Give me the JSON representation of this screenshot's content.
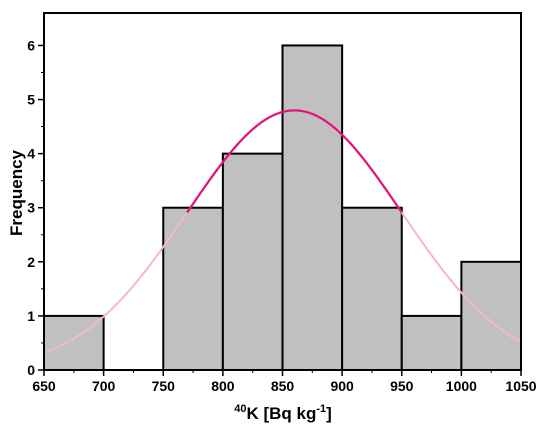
{
  "chart_data": {
    "type": "bar",
    "subtype": "histogram",
    "bins": [
      {
        "start": 650,
        "end": 700,
        "count": 1
      },
      {
        "start": 700,
        "end": 750,
        "count": 0
      },
      {
        "start": 750,
        "end": 800,
        "count": 3
      },
      {
        "start": 800,
        "end": 850,
        "count": 4
      },
      {
        "start": 850,
        "end": 900,
        "count": 6
      },
      {
        "start": 900,
        "end": 950,
        "count": 3
      },
      {
        "start": 950,
        "end": 1000,
        "count": 1
      },
      {
        "start": 1000,
        "end": 1050,
        "count": 2
      }
    ],
    "fit": {
      "type": "normal",
      "mean": 860,
      "sd": 90,
      "peak": 4.8,
      "highlight_range": [
        770,
        950
      ]
    },
    "xlim": [
      650,
      1050
    ],
    "ylim": [
      0,
      6.6
    ],
    "x_ticks": [
      650,
      700,
      750,
      800,
      850,
      900,
      950,
      1000,
      1050
    ],
    "y_ticks": [
      0,
      1,
      2,
      3,
      4,
      5,
      6
    ],
    "ylabel": "Frequency",
    "xlabel_sup": "40",
    "xlabel_main": "K [Bq kg",
    "xlabel_sup2": "-1",
    "xlabel_end": "]",
    "colors": {
      "bar_fill": "#c0c0c0",
      "bar_stroke": "#000000",
      "fit_strong": "#e3127a",
      "fit_faint": "#f2b8d2"
    },
    "grid": false,
    "legend": "none"
  }
}
